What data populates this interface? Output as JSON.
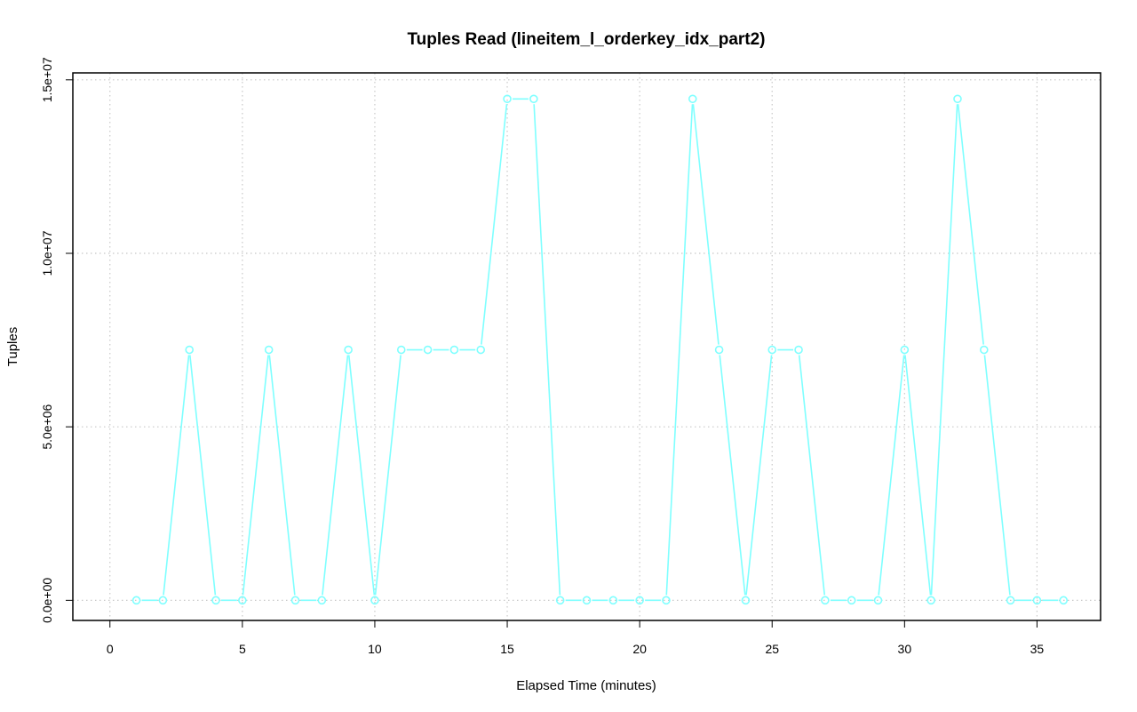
{
  "chart_data": {
    "type": "line",
    "title": "Tuples Read (lineitem_l_orderkey_idx_part2)",
    "xlabel": "Elapsed Time (minutes)",
    "ylabel": "Tuples",
    "xlim": [
      -1.4,
      37.4
    ],
    "ylim": [
      -580000,
      15200000
    ],
    "x_ticks": [
      0,
      5,
      10,
      15,
      20,
      25,
      30,
      35
    ],
    "x_tick_labels": [
      "0",
      "5",
      "10",
      "15",
      "20",
      "25",
      "30",
      "35"
    ],
    "y_ticks": [
      0,
      5000000,
      10000000,
      15000000
    ],
    "y_tick_labels": [
      "0.0e+00",
      "5.0e+06",
      "1.0e+07",
      "1.5e+07"
    ],
    "grid": true,
    "series": [
      {
        "color": "#7fffff",
        "marker": "circle",
        "x": [
          1,
          2,
          3,
          4,
          5,
          6,
          7,
          8,
          9,
          10,
          11,
          12,
          13,
          14,
          15,
          16,
          17,
          18,
          19,
          20,
          21,
          22,
          23,
          24,
          25,
          26,
          27,
          28,
          29,
          30,
          31,
          32,
          33,
          34,
          35,
          36
        ],
        "y": [
          0,
          0,
          7220000,
          0,
          0,
          7220000,
          0,
          0,
          7220000,
          0,
          7220000,
          7220000,
          7220000,
          7220000,
          14450000,
          14450000,
          0,
          0,
          0,
          0,
          0,
          14450000,
          7220000,
          0,
          7220000,
          7220000,
          0,
          0,
          0,
          7220000,
          0,
          14450000,
          7220000,
          0,
          0,
          0
        ]
      }
    ]
  }
}
